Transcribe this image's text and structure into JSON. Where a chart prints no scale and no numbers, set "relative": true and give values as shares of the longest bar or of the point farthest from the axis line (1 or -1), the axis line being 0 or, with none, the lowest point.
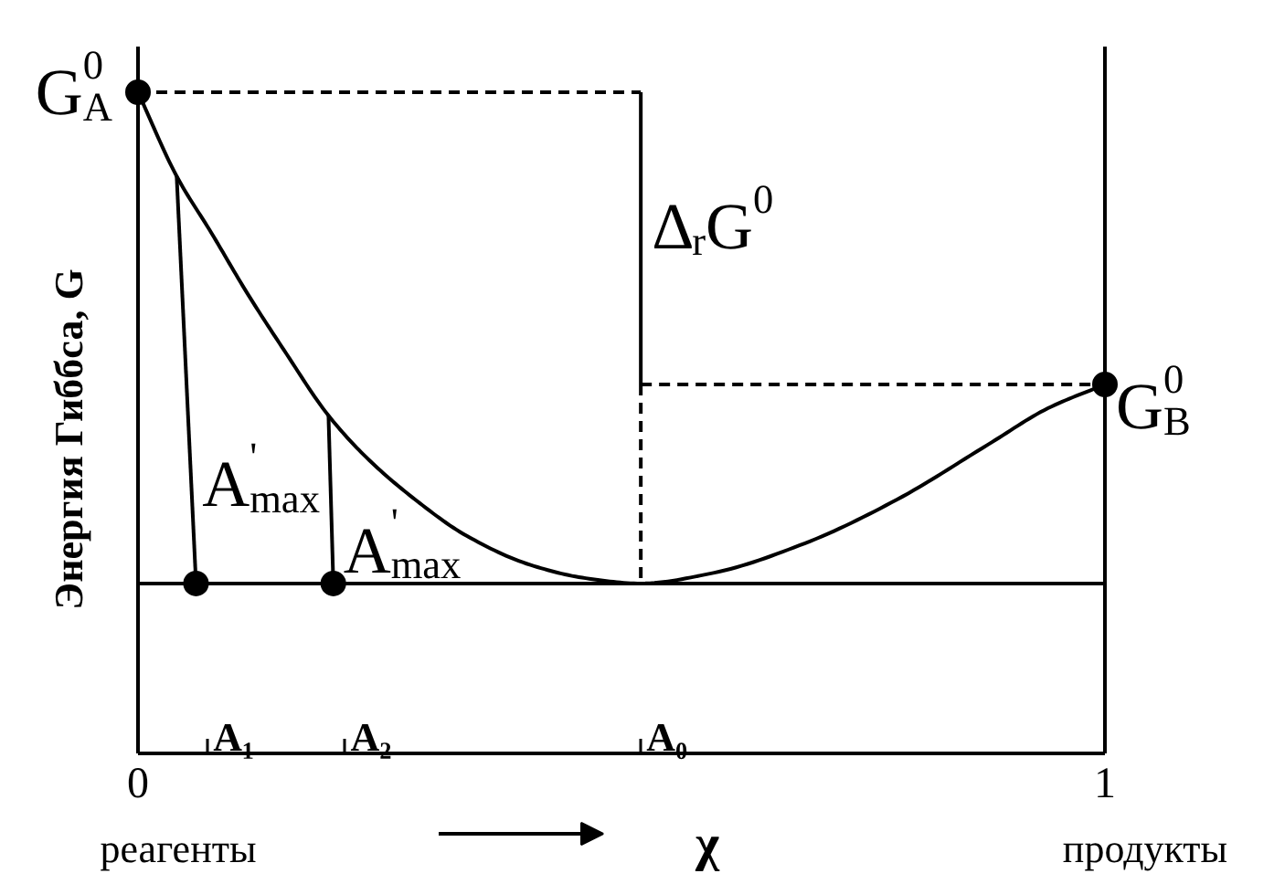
{
  "chart_data": {
    "type": "line",
    "relative": true,
    "xlabel": "χ",
    "ylabel": "Энергия Гиббса, G",
    "xlim": [
      0,
      1
    ],
    "xticks": [
      0,
      1,
      {
        "value": 0.072,
        "label": null
      },
      {
        "value": 0.214,
        "label": null
      },
      {
        "value": 0.52,
        "label": null
      }
    ],
    "series": [
      {
        "color": "#000000",
        "x": [
          0,
          0.04,
          0.076,
          0.113,
          0.151,
          0.197,
          0.236,
          0.284,
          0.34,
          0.406,
          0.463,
          0.52,
          0.595,
          0.69,
          0.785,
          0.879,
          0.941,
          1
        ],
        "values": [
          1,
          0.873,
          0.787,
          0.696,
          0.61,
          0.511,
          0.448,
          0.387,
          0.329,
          0.285,
          0.265,
          0.257,
          0.273,
          0.318,
          0.384,
          0.467,
          0.522,
          0.558
        ]
      },
      {
        "color": "#000000",
        "x": [
          0,
          1
        ],
        "values": [
          0.257,
          0.257
        ]
      },
      {
        "color": "#000000",
        "line_style": "dashed",
        "x": [
          0,
          0.52
        ],
        "values": [
          1,
          1
        ]
      },
      {
        "color": "#000000",
        "x": [
          0.52,
          0.52
        ],
        "values": [
          1,
          0.558
        ]
      },
      {
        "color": "#000000",
        "line_style": "dashed",
        "x": [
          0.52,
          1
        ],
        "values": [
          0.558,
          0.558
        ]
      },
      {
        "color": "#000000",
        "line_style": "dashed",
        "x": [
          0.52,
          0.52
        ],
        "values": [
          0.558,
          0.257
        ]
      },
      {
        "color": "#000000",
        "x": [
          0.04,
          0.06
        ],
        "values": [
          0.873,
          0.257
        ]
      },
      {
        "color": "#000000",
        "x": [
          0.197,
          0.202
        ],
        "values": [
          0.511,
          0.257
        ]
      },
      {
        "type": "scatter",
        "color": "#000000",
        "marker": "circle",
        "x": [
          0,
          1,
          0.06,
          0.202
        ],
        "values": [
          1,
          0.558,
          0.257,
          0.257
        ]
      }
    ],
    "ref_lines": [
      {
        "axis": "x",
        "value": 0
      },
      {
        "axis": "x",
        "value": 1
      }
    ],
    "annotations": [
      {
        "text": "G$^{0}$$_{A}$",
        "x": 0,
        "y": 1
      },
      {
        "text": "G$^{0}$$_{B}$",
        "x": 1,
        "y": 0.558
      },
      {
        "text": "Δ$_{r}$G$^{0}$",
        "x": 0.52,
        "y": 0.83
      },
      {
        "text": "A$^{'}$$_{max}$",
        "x": 0.055,
        "y": 0.44
      },
      {
        "text": "A$^{'}$$_{max}$",
        "x": 0.201,
        "y": 0.34
      },
      "A₁",
      "A₂",
      "A₀",
      "реагенты",
      "продукты"
    ]
  }
}
